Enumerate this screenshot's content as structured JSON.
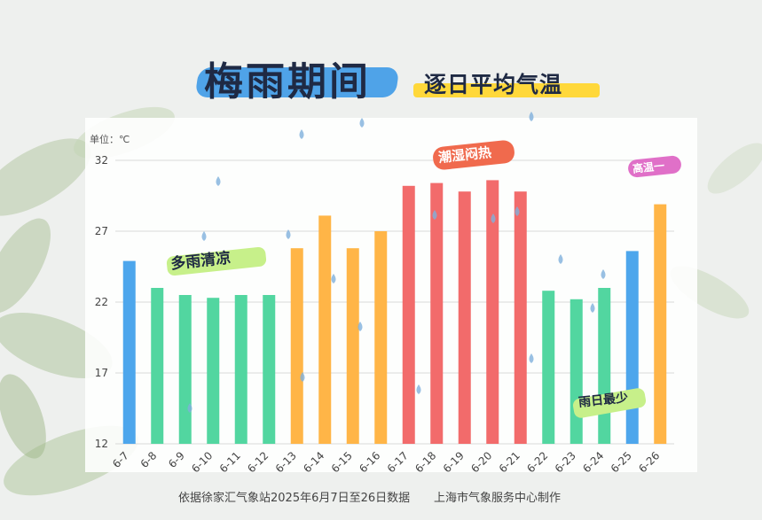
{
  "title": {
    "main": "梅雨期间",
    "sub": "逐日平均气温"
  },
  "annotations": {
    "cool": "多雨清凉",
    "hot": "潮湿闷热",
    "high": "高温一",
    "rain": "雨日最少"
  },
  "footer": {
    "source": "依据徐家汇气象站2025年6月7日至26日数据",
    "producer": "上海市气象服务中心制作"
  },
  "colors": {
    "blue": "#4da6ec",
    "green": "#52d6a0",
    "orange": "#ffb547",
    "red": "#f26b6b",
    "title_blue": "#4fa3e8",
    "title_yellow": "#ffd83a"
  },
  "chart_data": {
    "type": "bar",
    "unit_label": "单位：℃",
    "categories": [
      "6-7",
      "6-8",
      "6-9",
      "6-10",
      "6-11",
      "6-12",
      "6-13",
      "6-14",
      "6-15",
      "6-16",
      "6-17",
      "6-18",
      "6-19",
      "6-20",
      "6-21",
      "6-22",
      "6-23",
      "6-24",
      "6-25",
      "6-26"
    ],
    "values": [
      24.9,
      23.0,
      22.5,
      22.3,
      22.5,
      22.5,
      25.8,
      28.1,
      25.8,
      27.0,
      30.2,
      30.4,
      29.8,
      30.6,
      29.8,
      22.8,
      22.2,
      23.0,
      25.6,
      28.9
    ],
    "bar_colors": [
      "blue",
      "green",
      "green",
      "green",
      "green",
      "green",
      "orange",
      "orange",
      "orange",
      "orange",
      "red",
      "red",
      "red",
      "red",
      "red",
      "green",
      "green",
      "green",
      "blue",
      "orange"
    ],
    "yticks": [
      12,
      17,
      22,
      27,
      32
    ],
    "ylim": [
      12,
      32
    ],
    "grid": true
  }
}
